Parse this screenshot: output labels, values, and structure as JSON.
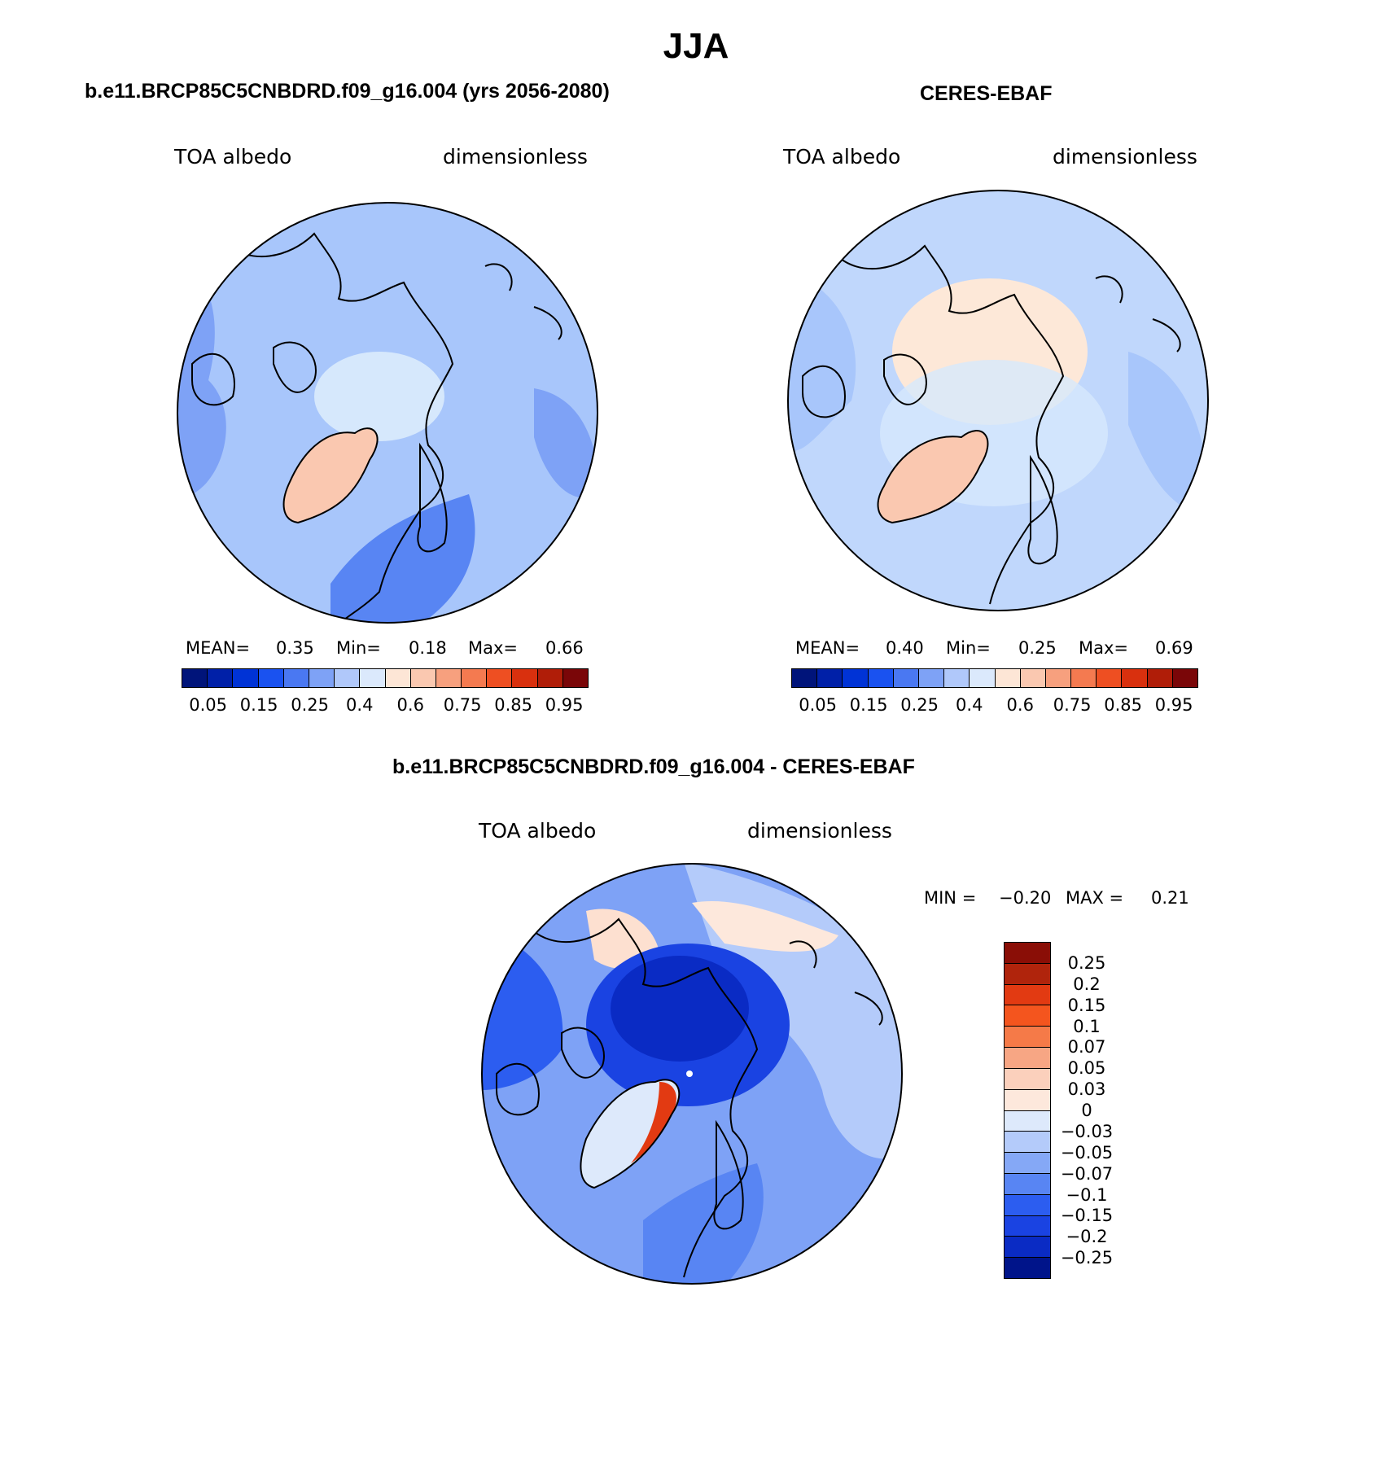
{
  "title": "JJA",
  "panels": [
    {
      "title": "b.e11.BRCP85C5CNBDRD.f09_g16.004 (yrs 2056-2080)",
      "left_label": "TOA albedo",
      "right_label": "dimensionless",
      "mean_label": "MEAN=",
      "mean": "0.35",
      "min_label": "Min=",
      "min": "0.18",
      "max_label": "Max=",
      "max": "0.66",
      "base_color": "#a8c6fb",
      "greenland_color": "#fac8b0",
      "arctic_color": "#d6e8fc"
    },
    {
      "title": "CERES-EBAF",
      "left_label": "TOA albedo",
      "right_label": "dimensionless",
      "mean_label": "MEAN=",
      "mean": "0.40",
      "min_label": "Min=",
      "min": "0.25",
      "max_label": "Max=",
      "max": "0.69",
      "base_color": "#c0d7fc",
      "greenland_color": "#fac8b0",
      "arctic_color": "#fde8d8"
    }
  ],
  "shared_colorbar": {
    "colors": [
      "#00147a",
      "#0020a8",
      "#0033d6",
      "#1a52f0",
      "#4a78f2",
      "#7ea2f6",
      "#b0c8fa",
      "#dbe9fc",
      "#fde6d6",
      "#fac8b0",
      "#f7a07e",
      "#f47a50",
      "#ee4f22",
      "#d9300e",
      "#b01d08",
      "#7a0608"
    ],
    "labels": [
      "0.05",
      "0.15",
      "0.25",
      "0.4",
      "0.6",
      "0.75",
      "0.85",
      "0.95"
    ]
  },
  "difference": {
    "title": "b.e11.BRCP85C5CNBDRD.f09_g16.004 - CERES-EBAF",
    "left_label": "TOA albedo",
    "right_label": "dimensionless",
    "min_label": "MIN =",
    "min": "−0.20",
    "max_label": "MAX =",
    "max": "0.21",
    "colors": [
      "#8a0e06",
      "#b0240c",
      "#e23a12",
      "#f4551e",
      "#f57a48",
      "#f7a684",
      "#fbd0bc",
      "#fde8dc",
      "#dde9fb",
      "#b4cbfa",
      "#85a8f6",
      "#5885f3",
      "#2c5df0",
      "#1a43e2",
      "#0a2bc4",
      "#00148a"
    ],
    "labels": [
      "0.25",
      "0.2",
      "0.15",
      "0.1",
      "0.07",
      "0.05",
      "0.03",
      "0",
      "−0.03",
      "−0.05",
      "−0.07",
      "−0.1",
      "−0.15",
      "−0.2",
      "−0.25"
    ],
    "base_color": "#7ea2f6",
    "arctic_color": "#1a43e2",
    "land_warm_color": "#fde0d0"
  }
}
